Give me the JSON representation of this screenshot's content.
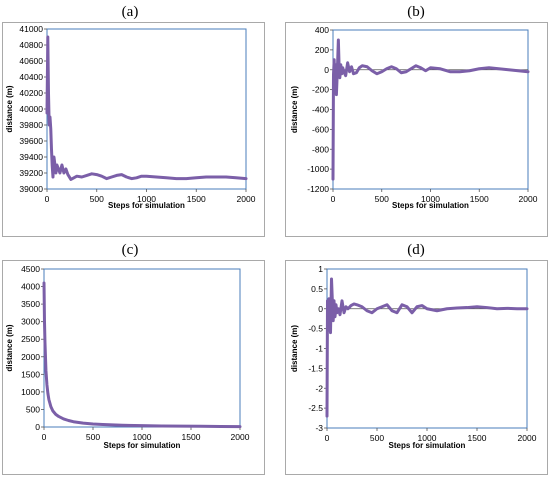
{
  "chart_data": [
    {
      "panel": "(a)",
      "type": "line",
      "xlabel": "Steps for simulation",
      "ylabel": "distance  (m)",
      "xlim": [
        0,
        2000
      ],
      "ylim": [
        39000,
        41000
      ],
      "xticks": [
        0,
        500,
        1000,
        1500,
        2000
      ],
      "yticks": [
        39000,
        39200,
        39400,
        39600,
        39800,
        40000,
        40200,
        40400,
        40600,
        40800,
        41000
      ],
      "series": [
        {
          "color": "#7b5fa8",
          "x": [
            0,
            8,
            15,
            22,
            30,
            38,
            45,
            52,
            60,
            70,
            80,
            90,
            100,
            115,
            130,
            150,
            170,
            190,
            210,
            240,
            270,
            300,
            350,
            400,
            450,
            500,
            550,
            600,
            650,
            700,
            750,
            800,
            850,
            900,
            950,
            1000,
            1100,
            1200,
            1300,
            1400,
            1500,
            1600,
            1700,
            1800,
            1900,
            2000
          ],
          "y": [
            39950,
            40900,
            40200,
            39800,
            39900,
            39750,
            39500,
            39300,
            39150,
            39400,
            39300,
            39200,
            39300,
            39250,
            39200,
            39300,
            39200,
            39250,
            39180,
            39120,
            39140,
            39160,
            39150,
            39170,
            39190,
            39180,
            39160,
            39130,
            39150,
            39170,
            39180,
            39150,
            39130,
            39140,
            39160,
            39160,
            39150,
            39140,
            39130,
            39130,
            39140,
            39150,
            39150,
            39150,
            39140,
            39130
          ]
        }
      ]
    },
    {
      "panel": "(b)",
      "type": "line",
      "xlabel": "Steps for simulation",
      "ylabel": "distance  (m)",
      "xlim": [
        0,
        2000
      ],
      "ylim": [
        -1200,
        400
      ],
      "xticks": [
        0,
        500,
        1000,
        1500,
        2000
      ],
      "yticks": [
        -1200,
        -1000,
        -800,
        -600,
        -400,
        -200,
        0,
        200,
        400
      ],
      "series": [
        {
          "color": "#7b5fa8",
          "x": [
            0,
            5,
            12,
            20,
            28,
            35,
            45,
            55,
            62,
            70,
            80,
            90,
            100,
            115,
            130,
            150,
            170,
            190,
            210,
            240,
            270,
            300,
            350,
            400,
            450,
            500,
            550,
            600,
            650,
            700,
            750,
            800,
            850,
            900,
            950,
            1000,
            1100,
            1200,
            1300,
            1400,
            1500,
            1600,
            1700,
            1800,
            1900,
            2000
          ],
          "y": [
            -1100,
            -50,
            100,
            -200,
            50,
            -250,
            0,
            300,
            50,
            -80,
            50,
            -40,
            20,
            -30,
            -60,
            70,
            -20,
            30,
            -40,
            -30,
            20,
            40,
            30,
            -10,
            -40,
            -20,
            10,
            30,
            10,
            -30,
            -20,
            10,
            40,
            20,
            -10,
            20,
            10,
            -20,
            -20,
            -10,
            10,
            20,
            10,
            0,
            -10,
            -20
          ]
        }
      ]
    },
    {
      "panel": "(c)",
      "type": "line",
      "xlabel": "Steps for simulation",
      "ylabel": "distance  (m)",
      "xlim": [
        0,
        2000
      ],
      "ylim": [
        0,
        4500
      ],
      "xticks": [
        0,
        500,
        1000,
        1500,
        2000
      ],
      "yticks": [
        0,
        500,
        1000,
        1500,
        2000,
        2500,
        3000,
        3500,
        4000,
        4500
      ],
      "series": [
        {
          "color": "#7b5fa8",
          "x": [
            0,
            5,
            10,
            20,
            30,
            40,
            50,
            70,
            90,
            120,
            150,
            200,
            250,
            300,
            400,
            500,
            600,
            700,
            800,
            1000,
            1200,
            1400,
            1600,
            1800,
            2000
          ],
          "y": [
            4100,
            3000,
            2400,
            1600,
            1200,
            950,
            780,
            580,
            460,
            360,
            300,
            230,
            185,
            150,
            110,
            85,
            70,
            60,
            50,
            40,
            30,
            25,
            20,
            15,
            10
          ]
        }
      ]
    },
    {
      "panel": "(d)",
      "type": "line",
      "xlabel": "Steps for simulation",
      "ylabel": "distance  (m)",
      "xlim": [
        0,
        2000
      ],
      "ylim": [
        -3,
        1
      ],
      "xticks": [
        0,
        500,
        1000,
        1500,
        2000
      ],
      "yticks": [
        -3,
        -2.5,
        -2,
        -1.5,
        -1,
        -0.5,
        0,
        0.5,
        1
      ],
      "series": [
        {
          "color": "#7b5fa8",
          "x": [
            0,
            5,
            12,
            20,
            28,
            35,
            45,
            55,
            62,
            70,
            80,
            90,
            100,
            115,
            130,
            150,
            170,
            190,
            210,
            240,
            270,
            300,
            350,
            400,
            450,
            500,
            550,
            600,
            650,
            700,
            750,
            800,
            850,
            900,
            950,
            1000,
            1100,
            1200,
            1300,
            1400,
            1500,
            1600,
            1700,
            1800,
            1900,
            2000
          ],
          "y": [
            -2.7,
            0.2,
            -0.1,
            0.25,
            -0.4,
            -0.6,
            0.75,
            0.1,
            -0.3,
            0.2,
            -0.2,
            0.1,
            -0.1,
            0,
            -0.15,
            0.2,
            -0.1,
            0.05,
            0,
            0.08,
            0.12,
            0.1,
            0.05,
            -0.05,
            -0.1,
            0,
            0.05,
            0.1,
            -0.05,
            -0.1,
            0.1,
            0.05,
            -0.1,
            0.05,
            0.08,
            0,
            -0.05,
            0,
            0.02,
            0.03,
            0.05,
            0.03,
            0,
            0.01,
            0,
            0
          ]
        }
      ]
    }
  ]
}
